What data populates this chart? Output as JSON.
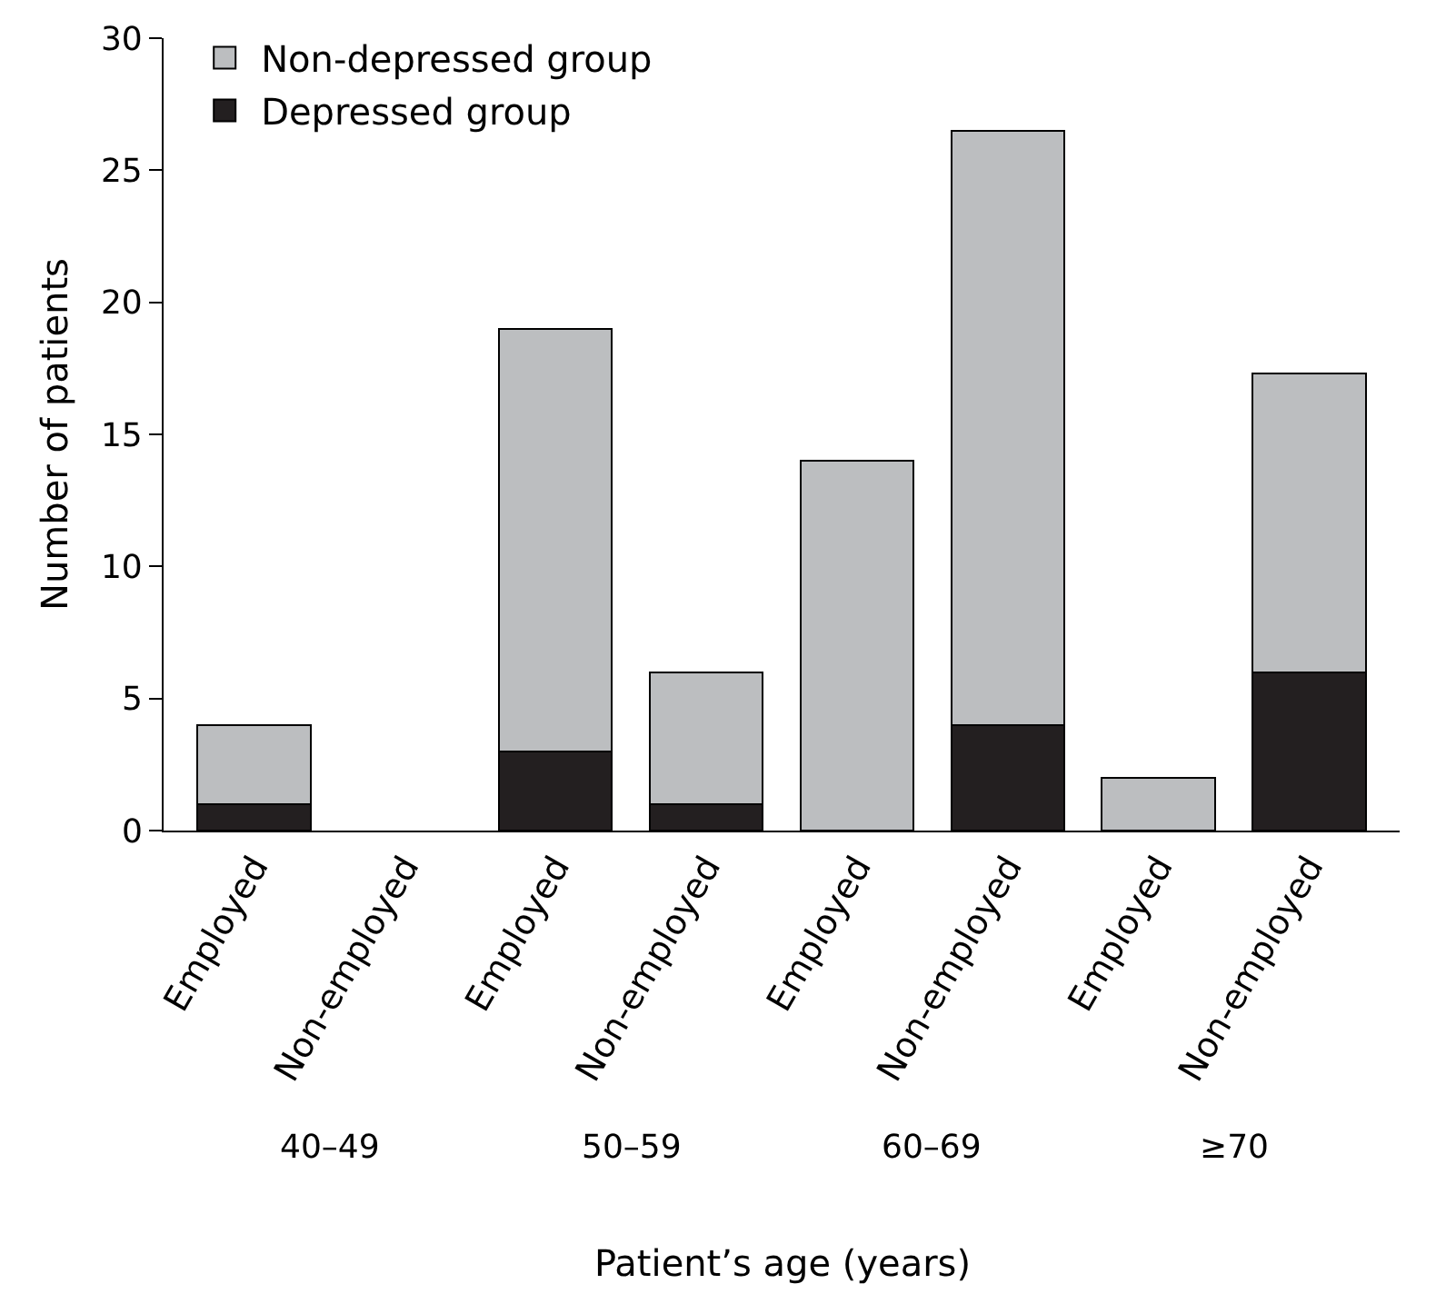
{
  "chart_data": {
    "type": "bar",
    "stacked": true,
    "xlabel": "Patient’s age (years)",
    "ylabel": "Number of patients",
    "categories": [
      "Employed",
      "Non-employed",
      "Employed",
      "Non-employed",
      "Employed",
      "Non-employed",
      "Employed",
      "Non-employed"
    ],
    "series": [
      {
        "name": "Depressed group",
        "color": "#231f20",
        "values": [
          1,
          0,
          3,
          1,
          0,
          4,
          0,
          6
        ]
      },
      {
        "name": "Non-depressed group",
        "color": "#bcbec0",
        "values": [
          3,
          0,
          16,
          5,
          14,
          22.5,
          2,
          11.3
        ]
      }
    ],
    "ylim": [
      0,
      30
    ],
    "yticks": [
      0,
      5,
      10,
      15,
      20,
      25,
      30
    ],
    "grid": false,
    "legend": "top left",
    "annotations": [
      "40–49",
      "50–59",
      "60–69",
      "≥70"
    ]
  }
}
